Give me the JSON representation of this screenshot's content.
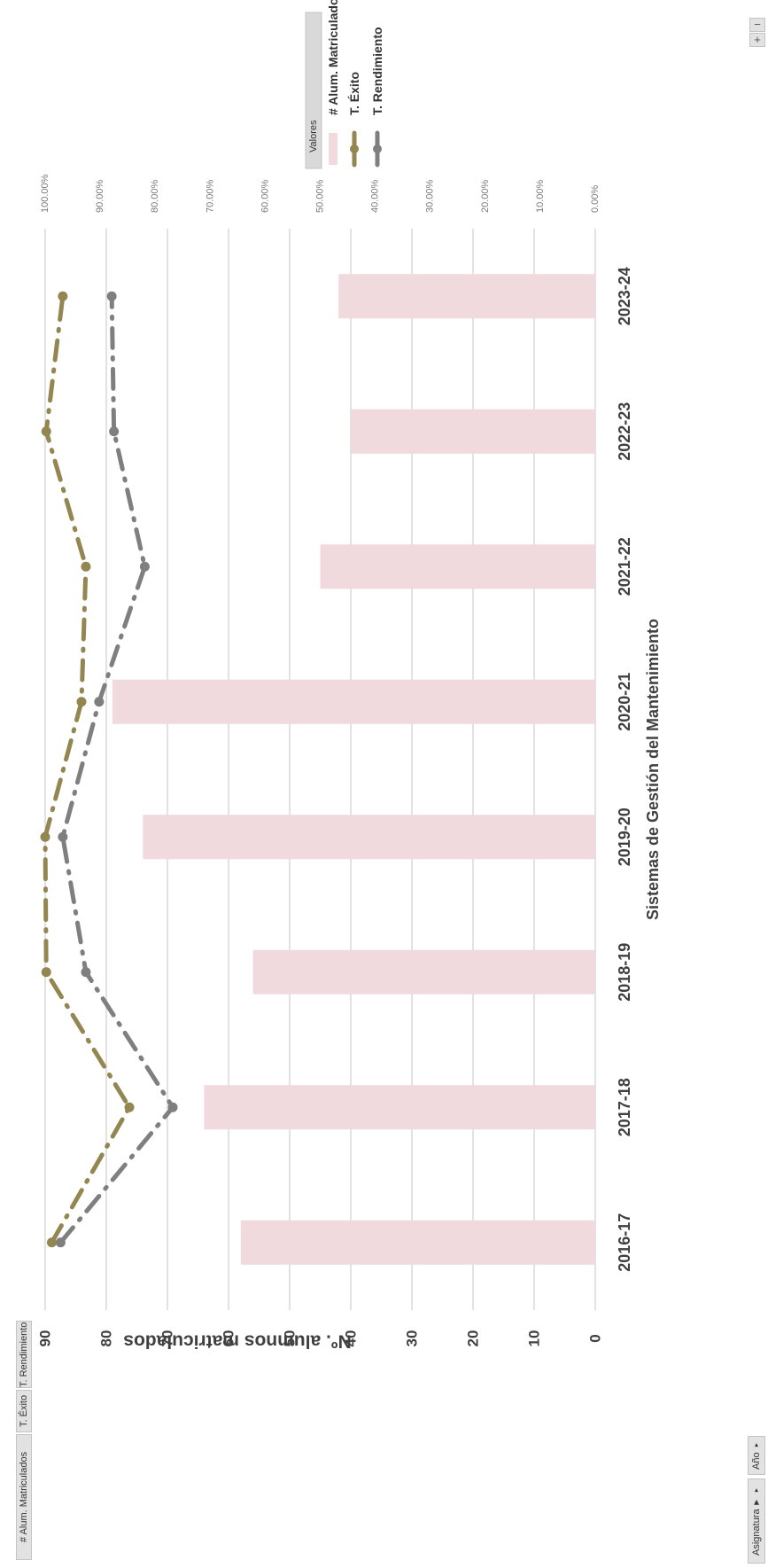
{
  "field_buttons": {
    "alum": "# Alum. Matriculados",
    "exito": "T. Éxito",
    "rendimiento": "T. Rendimiento"
  },
  "filters": {
    "asignatura": "Asignatura",
    "anio": "Año",
    "filter_icon": "funnel-icon",
    "dropdown_icon": "chevron-down-icon"
  },
  "zoom": {
    "collapse": "−",
    "expand": "+"
  },
  "colors": {
    "bars": "#f0dadd",
    "exito": "#948650",
    "rendimiento": "#7f7f7f",
    "grid": "#d9d9d9",
    "text": "#595959"
  },
  "chart_data": {
    "type": "bar",
    "categories": [
      "2016-17",
      "2017-18",
      "2018-19",
      "2019-20",
      "2020-21",
      "2021-22",
      "2022-23",
      "2023-24"
    ],
    "xlabel": "Sistemas de Gestión del Mantenimiento",
    "ylabel": "Nº. alumnos matriculados",
    "ylim": [
      0,
      90
    ],
    "yticks": [
      "0",
      "10",
      "20",
      "30",
      "40",
      "50",
      "60",
      "70",
      "80",
      "90"
    ],
    "y2lim": [
      0,
      1
    ],
    "y2ticks": [
      "0.00%",
      "10.00%",
      "20.00%",
      "30.00%",
      "40.00%",
      "50.00%",
      "60.00%",
      "70.00%",
      "80.00%",
      "90.00%",
      "100.00%"
    ],
    "grid": true,
    "legend_title": "Valores",
    "legend_position": "top-right",
    "series": [
      {
        "name": "# Alum. Matriculados",
        "type": "bar",
        "axis": "primary",
        "values": [
          58,
          64,
          56,
          74,
          79,
          45,
          40,
          42
        ]
      },
      {
        "name": "T. Éxito",
        "type": "line",
        "axis": "secondary",
        "values": [
          0.988,
          0.847,
          0.998,
          1.0,
          0.934,
          0.926,
          0.998,
          0.968
        ]
      },
      {
        "name": "T. Rendimiento",
        "type": "line",
        "axis": "secondary",
        "values": [
          0.972,
          0.768,
          0.926,
          0.968,
          0.902,
          0.819,
          0.875,
          0.879
        ]
      }
    ]
  }
}
